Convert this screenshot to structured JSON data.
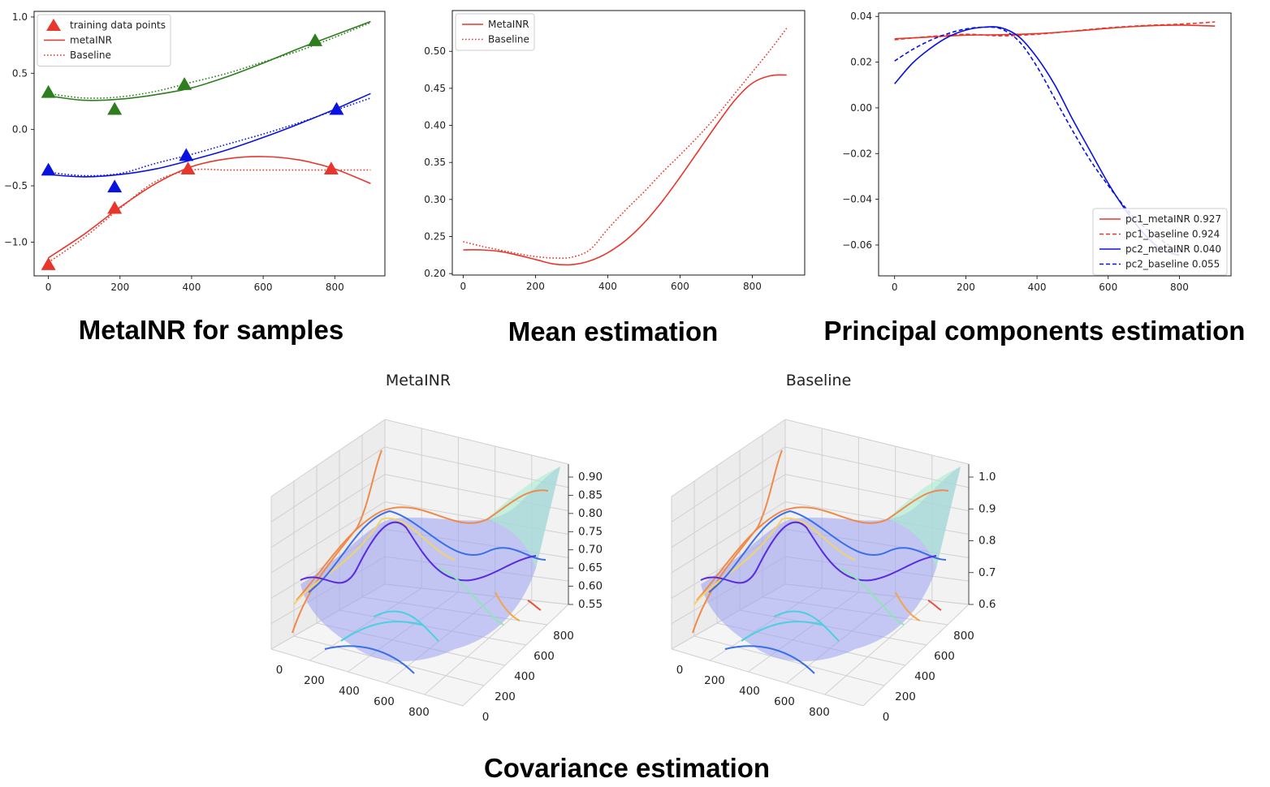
{
  "captions": {
    "samples": "MetaINR for samples",
    "mean": "Mean estimation",
    "pc": "Principal components estimation",
    "covariance": "Covariance estimation"
  },
  "chart_data": [
    {
      "id": "samples",
      "type": "line",
      "title": "",
      "xlim": [
        -40,
        940
      ],
      "ylim": [
        -1.3,
        1.05
      ],
      "xticks": [
        0,
        200,
        400,
        600,
        800
      ],
      "yticks": [
        -1.0,
        -0.5,
        0.0,
        0.5,
        1.0
      ],
      "ytick_labels": [
        "−1.0",
        "−0.5",
        "0.0",
        "0.5",
        "1.0"
      ],
      "legend_position": "upper-left",
      "legend": [
        {
          "label": "training data points",
          "style": "triangle",
          "color": "#e8362c"
        },
        {
          "label": "metaINR",
          "style": "solid",
          "color": "#e8362c"
        },
        {
          "label": "Baseline",
          "style": "dotted",
          "color": "#e8362c"
        }
      ],
      "series": [
        {
          "group": "green",
          "kind": "metaINR",
          "style": "solid",
          "color": "#2e7d1f",
          "points": [
            [
              0,
              0.3
            ],
            [
              100,
              0.26
            ],
            [
              200,
              0.27
            ],
            [
              300,
              0.31
            ],
            [
              400,
              0.37
            ],
            [
              500,
              0.47
            ],
            [
              600,
              0.59
            ],
            [
              700,
              0.72
            ],
            [
              800,
              0.84
            ],
            [
              900,
              0.96
            ]
          ]
        },
        {
          "group": "green",
          "kind": "baseline",
          "style": "dotted",
          "color": "#2e7d1f",
          "points": [
            [
              0,
              0.32
            ],
            [
              100,
              0.28
            ],
            [
              200,
              0.29
            ],
            [
              300,
              0.34
            ],
            [
              400,
              0.42
            ],
            [
              500,
              0.5
            ],
            [
              600,
              0.6
            ],
            [
              700,
              0.7
            ],
            [
              800,
              0.82
            ],
            [
              900,
              0.95
            ]
          ]
        },
        {
          "group": "blue",
          "kind": "metaINR",
          "style": "solid",
          "color": "#0a12e0",
          "points": [
            [
              0,
              -0.4
            ],
            [
              100,
              -0.42
            ],
            [
              200,
              -0.4
            ],
            [
              300,
              -0.35
            ],
            [
              400,
              -0.27
            ],
            [
              500,
              -0.18
            ],
            [
              600,
              -0.07
            ],
            [
              700,
              0.05
            ],
            [
              800,
              0.18
            ],
            [
              900,
              0.32
            ]
          ]
        },
        {
          "group": "blue",
          "kind": "baseline",
          "style": "dotted",
          "color": "#0a12e0",
          "points": [
            [
              0,
              -0.38
            ],
            [
              100,
              -0.41
            ],
            [
              200,
              -0.39
            ],
            [
              300,
              -0.3
            ],
            [
              400,
              -0.22
            ],
            [
              500,
              -0.13
            ],
            [
              600,
              -0.04
            ],
            [
              700,
              0.06
            ],
            [
              800,
              0.17
            ],
            [
              900,
              0.28
            ]
          ]
        },
        {
          "group": "red",
          "kind": "metaINR",
          "style": "solid",
          "color": "#e8362c",
          "points": [
            [
              0,
              -1.14
            ],
            [
              100,
              -0.93
            ],
            [
              200,
              -0.69
            ],
            [
              300,
              -0.48
            ],
            [
              400,
              -0.33
            ],
            [
              500,
              -0.26
            ],
            [
              600,
              -0.24
            ],
            [
              700,
              -0.27
            ],
            [
              800,
              -0.35
            ],
            [
              900,
              -0.48
            ]
          ]
        },
        {
          "group": "red",
          "kind": "baseline",
          "style": "dotted",
          "color": "#e8362c",
          "points": [
            [
              0,
              -1.18
            ],
            [
              100,
              -0.96
            ],
            [
              200,
              -0.7
            ],
            [
              300,
              -0.46
            ],
            [
              400,
              -0.36
            ],
            [
              500,
              -0.36
            ],
            [
              600,
              -0.36
            ],
            [
              700,
              -0.36
            ],
            [
              800,
              -0.36
            ],
            [
              900,
              -0.36
            ]
          ]
        }
      ],
      "markers": [
        {
          "group": "green",
          "color": "#2e7d1f",
          "points": [
            [
              0,
              0.33
            ],
            [
              185,
              0.18
            ],
            [
              380,
              0.4
            ],
            [
              745,
              0.79
            ]
          ]
        },
        {
          "group": "blue",
          "color": "#0a12e0",
          "points": [
            [
              0,
              -0.36
            ],
            [
              185,
              -0.51
            ],
            [
              385,
              -0.23
            ],
            [
              805,
              0.18
            ]
          ]
        },
        {
          "group": "red",
          "color": "#e8362c",
          "points": [
            [
              0,
              -1.2
            ],
            [
              185,
              -0.7
            ],
            [
              390,
              -0.35
            ],
            [
              790,
              -0.35
            ]
          ]
        }
      ]
    },
    {
      "id": "mean",
      "type": "line",
      "title": "",
      "xlim": [
        -30,
        945
      ],
      "ylim": [
        0.198,
        0.555
      ],
      "xticks": [
        0,
        200,
        400,
        600,
        800
      ],
      "yticks": [
        0.2,
        0.25,
        0.3,
        0.35,
        0.4,
        0.45,
        0.5
      ],
      "ytick_labels": [
        "0.20",
        "0.25",
        "0.30",
        "0.35",
        "0.40",
        "0.45",
        "0.50"
      ],
      "legend_position": "upper-left",
      "legend": [
        {
          "label": "MetaINR",
          "style": "solid",
          "color": "#e8362c"
        },
        {
          "label": "Baseline",
          "style": "dotted",
          "color": "#e8362c"
        }
      ],
      "series": [
        {
          "kind": "metaINR",
          "style": "solid",
          "color": "#e8362c",
          "points": [
            [
              0,
              0.232
            ],
            [
              50,
              0.232
            ],
            [
              100,
              0.23
            ],
            [
              150,
              0.225
            ],
            [
              200,
              0.219
            ],
            [
              250,
              0.213
            ],
            [
              300,
              0.212
            ],
            [
              350,
              0.217
            ],
            [
              400,
              0.228
            ],
            [
              450,
              0.245
            ],
            [
              500,
              0.268
            ],
            [
              550,
              0.297
            ],
            [
              600,
              0.33
            ],
            [
              650,
              0.365
            ],
            [
              700,
              0.4
            ],
            [
              750,
              0.433
            ],
            [
              800,
              0.457
            ],
            [
              850,
              0.467
            ],
            [
              895,
              0.468
            ]
          ]
        },
        {
          "kind": "baseline",
          "style": "dotted",
          "color": "#e8362c",
          "points": [
            [
              0,
              0.243
            ],
            [
              50,
              0.237
            ],
            [
              100,
              0.232
            ],
            [
              150,
              0.227
            ],
            [
              200,
              0.223
            ],
            [
              250,
              0.221
            ],
            [
              300,
              0.222
            ],
            [
              350,
              0.232
            ],
            [
              400,
              0.26
            ],
            [
              450,
              0.286
            ],
            [
              500,
              0.31
            ],
            [
              550,
              0.336
            ],
            [
              600,
              0.36
            ],
            [
              650,
              0.385
            ],
            [
              700,
              0.412
            ],
            [
              750,
              0.442
            ],
            [
              800,
              0.472
            ],
            [
              850,
              0.502
            ],
            [
              895,
              0.531
            ]
          ]
        }
      ]
    },
    {
      "id": "pc",
      "type": "line",
      "title": "",
      "xlim": [
        -45,
        945
      ],
      "ylim": [
        -0.0735,
        0.0415
      ],
      "xticks": [
        0,
        200,
        400,
        600,
        800
      ],
      "yticks": [
        -0.06,
        -0.04,
        -0.02,
        0.0,
        0.02,
        0.04
      ],
      "ytick_labels": [
        "−0.06",
        "−0.04",
        "−0.02",
        "0.00",
        "0.02",
        "0.04"
      ],
      "legend_position": "lower-right",
      "legend": [
        {
          "label": "pc1_metaINR 0.927",
          "style": "solid",
          "color": "#e8362c"
        },
        {
          "label": "pc1_baseline 0.924",
          "style": "dashed",
          "color": "#e8362c"
        },
        {
          "label": "pc2_metaINR 0.040",
          "style": "solid",
          "color": "#0a12e0"
        },
        {
          "label": "pc2_baseline 0.055",
          "style": "dashed",
          "color": "#0a12e0"
        }
      ],
      "series": [
        {
          "kind": "pc1_metaINR",
          "style": "solid",
          "color": "#e8362c",
          "points": [
            [
              0,
              0.0302
            ],
            [
              100,
              0.031
            ],
            [
              200,
              0.0318
            ],
            [
              300,
              0.032
            ],
            [
              400,
              0.0325
            ],
            [
              500,
              0.0335
            ],
            [
              600,
              0.0348
            ],
            [
              700,
              0.0358
            ],
            [
              800,
              0.0362
            ],
            [
              900,
              0.0358
            ]
          ]
        },
        {
          "kind": "pc1_baseline",
          "style": "dashed",
          "color": "#e8362c",
          "points": [
            [
              0,
              0.0298
            ],
            [
              100,
              0.0312
            ],
            [
              200,
              0.0322
            ],
            [
              300,
              0.0315
            ],
            [
              400,
              0.0322
            ],
            [
              500,
              0.0336
            ],
            [
              600,
              0.035
            ],
            [
              700,
              0.036
            ],
            [
              800,
              0.0366
            ],
            [
              900,
              0.0376
            ]
          ]
        },
        {
          "kind": "pc2_metaINR",
          "style": "solid",
          "color": "#0a12e0",
          "points": [
            [
              0,
              0.0105
            ],
            [
              50,
              0.0195
            ],
            [
              100,
              0.026
            ],
            [
              150,
              0.031
            ],
            [
              200,
              0.034
            ],
            [
              250,
              0.0353
            ],
            [
              300,
              0.035
            ],
            [
              350,
              0.031
            ],
            [
              400,
              0.022
            ],
            [
              450,
              0.01
            ],
            [
              500,
              -0.005
            ],
            [
              550,
              -0.019
            ],
            [
              600,
              -0.033
            ],
            [
              650,
              -0.045
            ],
            [
              700,
              -0.055
            ],
            [
              750,
              -0.062
            ],
            [
              800,
              -0.0645
            ]
          ]
        },
        {
          "kind": "pc2_baseline",
          "style": "dashed",
          "color": "#0a12e0",
          "points": [
            [
              0,
              0.0205
            ],
            [
              50,
              0.0255
            ],
            [
              100,
              0.0295
            ],
            [
              150,
              0.0325
            ],
            [
              200,
              0.0345
            ],
            [
              250,
              0.0353
            ],
            [
              300,
              0.0345
            ],
            [
              350,
              0.029
            ],
            [
              400,
              0.018
            ],
            [
              450,
              0.004
            ],
            [
              500,
              -0.01
            ],
            [
              550,
              -0.023
            ],
            [
              600,
              -0.034
            ],
            [
              650,
              -0.044
            ],
            [
              700,
              -0.052
            ],
            [
              750,
              -0.058
            ],
            [
              800,
              -0.063
            ]
          ]
        }
      ]
    },
    {
      "id": "cov_meta",
      "type": "surface3d",
      "title": "MetaINR",
      "xticks": [
        0,
        200,
        400,
        600,
        800
      ],
      "yticks": [
        0,
        200,
        400,
        600,
        800
      ],
      "zticks": [
        "0.55",
        "0.60",
        "0.65",
        "0.70",
        "0.75",
        "0.80",
        "0.85",
        "0.90"
      ],
      "zlim": [
        0.55,
        0.9
      ]
    },
    {
      "id": "cov_base",
      "type": "surface3d",
      "title": "Baseline",
      "xticks": [
        0,
        200,
        400,
        600,
        800
      ],
      "yticks": [
        0,
        200,
        400,
        600,
        800
      ],
      "zticks": [
        "0.6",
        "0.7",
        "0.8",
        "0.9",
        "1.0"
      ],
      "zlim": [
        0.6,
        1.0
      ]
    }
  ]
}
